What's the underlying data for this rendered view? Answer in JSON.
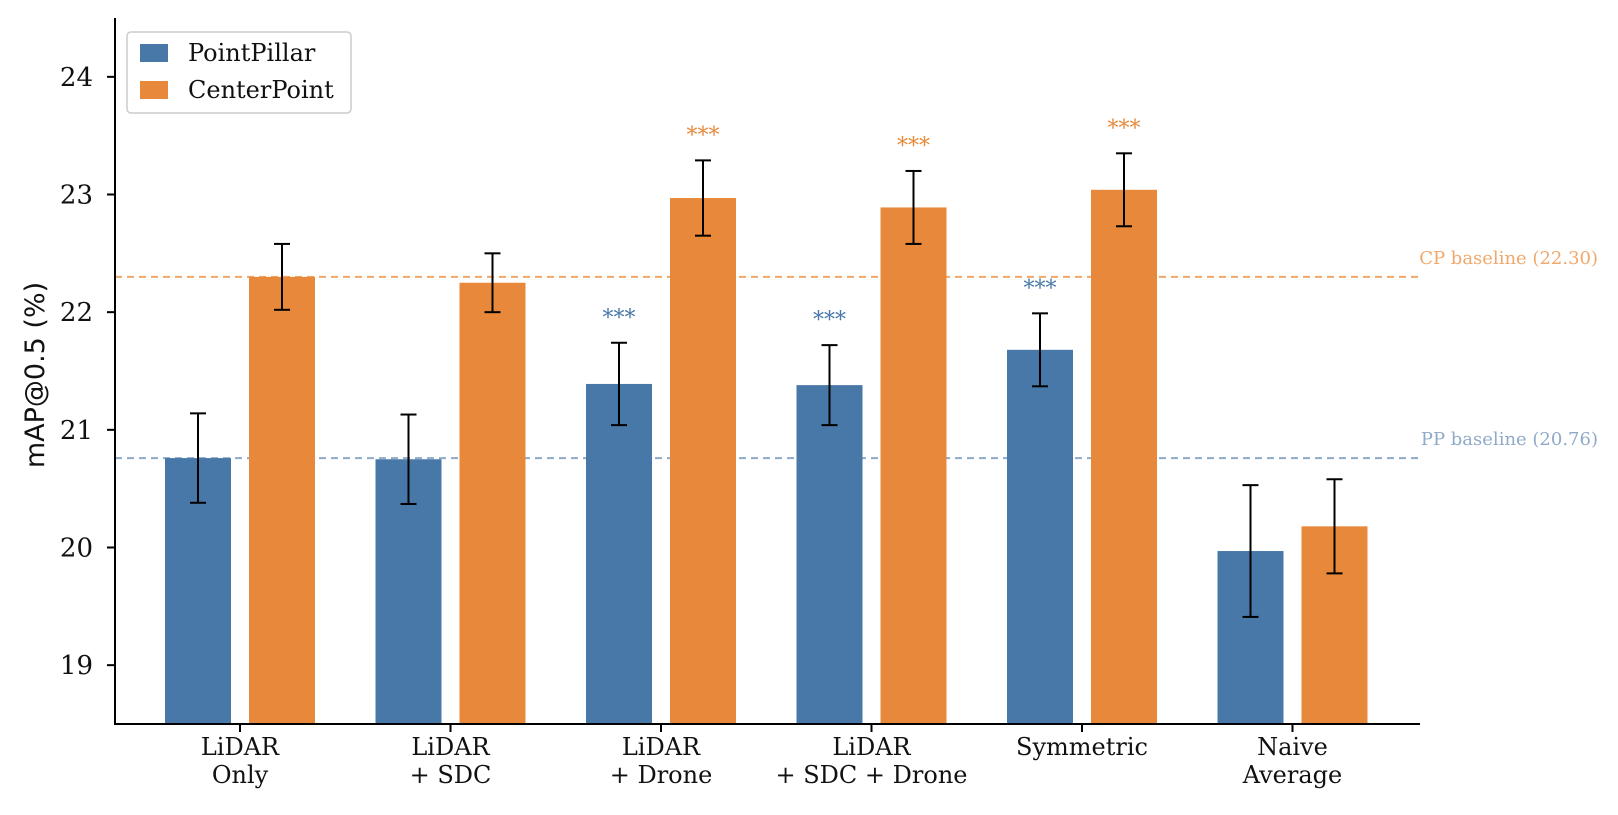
{
  "chart_data": {
    "type": "bar",
    "title": "",
    "xlabel": "",
    "ylabel": "mAP@0.5 (%)",
    "ylim": [
      18.5,
      24.5
    ],
    "yticks": [
      19,
      20,
      21,
      22,
      23,
      24
    ],
    "categories": [
      [
        "LiDAR",
        "Only"
      ],
      [
        "LiDAR",
        "+ SDC"
      ],
      [
        "LiDAR",
        "+ Drone"
      ],
      [
        "LiDAR",
        "+ SDC + Drone"
      ],
      [
        "Symmetric"
      ],
      [
        "Naive",
        "Average"
      ]
    ],
    "series": [
      {
        "name": "PointPillar",
        "color": "#4878a8",
        "values": [
          20.76,
          20.75,
          21.39,
          21.38,
          21.68,
          19.97
        ],
        "errors": [
          0.38,
          0.38,
          0.35,
          0.34,
          0.31,
          0.56
        ],
        "significance": [
          "",
          "",
          "***",
          "***",
          "***",
          ""
        ]
      },
      {
        "name": "CenterPoint",
        "color": "#e8883a",
        "values": [
          22.3,
          22.25,
          22.97,
          22.89,
          23.04,
          20.18
        ],
        "errors": [
          0.28,
          0.25,
          0.32,
          0.31,
          0.31,
          0.4
        ],
        "significance": [
          "",
          "",
          "***",
          "***",
          "***",
          ""
        ]
      }
    ],
    "baselines": [
      {
        "label": "CP baseline (22.30)",
        "value": 22.3,
        "color": "#f0a86a"
      },
      {
        "label": "PP baseline (20.76)",
        "value": 20.76,
        "color": "#8fa9c8"
      }
    ],
    "legend": {
      "position": "top-left",
      "entries": [
        "PointPillar",
        "CenterPoint"
      ]
    },
    "grid": false
  }
}
